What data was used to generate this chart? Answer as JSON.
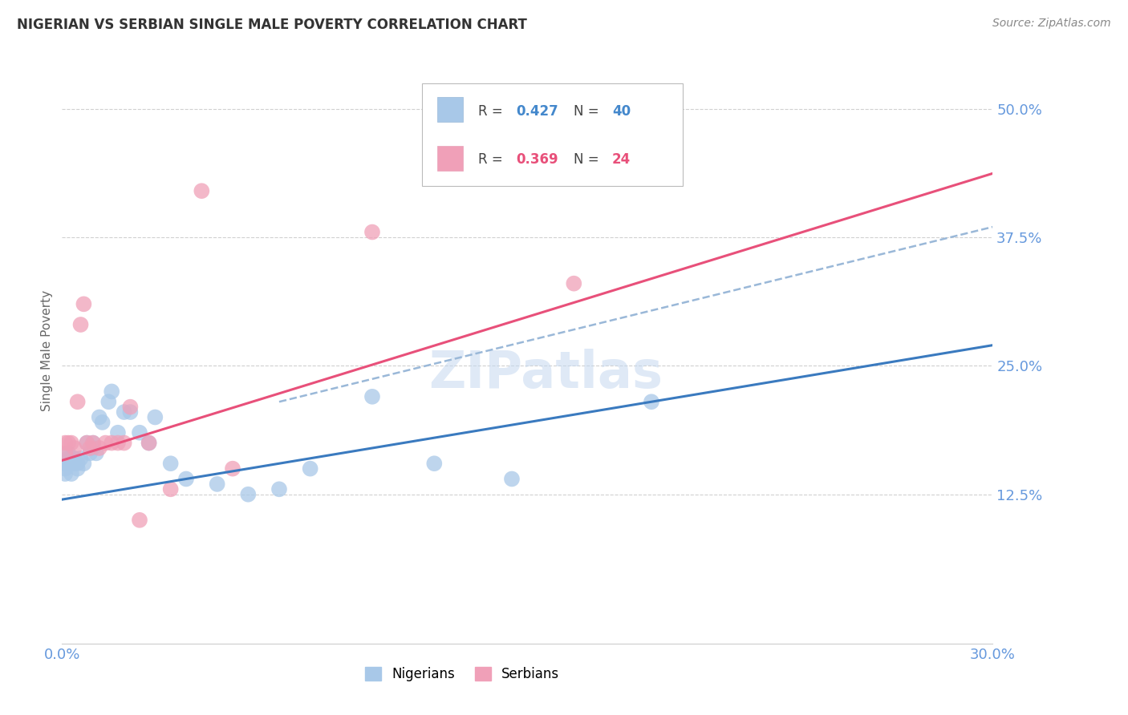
{
  "title": "NIGERIAN VS SERBIAN SINGLE MALE POVERTY CORRELATION CHART",
  "source": "Source: ZipAtlas.com",
  "ylabel": "Single Male Poverty",
  "xlim": [
    0.0,
    0.3
  ],
  "ylim": [
    -0.02,
    0.55
  ],
  "yticks": [
    0.125,
    0.25,
    0.375,
    0.5
  ],
  "ytick_labels": [
    "12.5%",
    "25.0%",
    "37.5%",
    "50.0%"
  ],
  "xticks": [
    0.0,
    0.05,
    0.1,
    0.15,
    0.2,
    0.25,
    0.3
  ],
  "nigerian_x": [
    0.001,
    0.001,
    0.001,
    0.002,
    0.002,
    0.002,
    0.003,
    0.003,
    0.003,
    0.004,
    0.004,
    0.005,
    0.005,
    0.006,
    0.007,
    0.008,
    0.009,
    0.01,
    0.01,
    0.011,
    0.012,
    0.013,
    0.015,
    0.016,
    0.018,
    0.02,
    0.022,
    0.025,
    0.028,
    0.03,
    0.035,
    0.04,
    0.05,
    0.06,
    0.07,
    0.08,
    0.1,
    0.12,
    0.145,
    0.19
  ],
  "nigerian_y": [
    0.155,
    0.15,
    0.145,
    0.165,
    0.16,
    0.155,
    0.16,
    0.155,
    0.145,
    0.16,
    0.155,
    0.155,
    0.15,
    0.16,
    0.155,
    0.175,
    0.165,
    0.175,
    0.17,
    0.165,
    0.2,
    0.195,
    0.215,
    0.225,
    0.185,
    0.205,
    0.205,
    0.185,
    0.175,
    0.2,
    0.155,
    0.14,
    0.135,
    0.125,
    0.13,
    0.15,
    0.22,
    0.155,
    0.14,
    0.215
  ],
  "serbian_x": [
    0.001,
    0.001,
    0.002,
    0.003,
    0.004,
    0.005,
    0.006,
    0.007,
    0.008,
    0.009,
    0.01,
    0.012,
    0.014,
    0.016,
    0.018,
    0.02,
    0.022,
    0.025,
    0.028,
    0.035,
    0.045,
    0.055,
    0.1,
    0.165
  ],
  "serbian_y": [
    0.175,
    0.165,
    0.175,
    0.175,
    0.17,
    0.215,
    0.29,
    0.31,
    0.175,
    0.17,
    0.175,
    0.17,
    0.175,
    0.175,
    0.175,
    0.175,
    0.21,
    0.1,
    0.175,
    0.13,
    0.42,
    0.15,
    0.38,
    0.33
  ],
  "nigerian_color": "#a8c8e8",
  "serbian_color": "#f0a0b8",
  "nigerian_line_color": "#3a7abf",
  "serbian_line_color": "#e8507a",
  "dashed_line_color": "#9ab8d8",
  "nigerian_R": 0.427,
  "nigerian_N": 40,
  "serbian_R": 0.369,
  "serbian_N": 24,
  "watermark": "ZIPatlas",
  "watermark_color": "#c5d8f0",
  "background_color": "#ffffff",
  "grid_color": "#d0d0d0",
  "title_color": "#333333",
  "source_color": "#888888",
  "ylabel_color": "#666666",
  "tick_color": "#6699dd",
  "legend_R_nigerian_color": "#4488cc",
  "legend_N_nigerian_color": "#4488cc",
  "legend_R_serbian_color": "#e8507a",
  "legend_N_serbian_color": "#e8507a"
}
